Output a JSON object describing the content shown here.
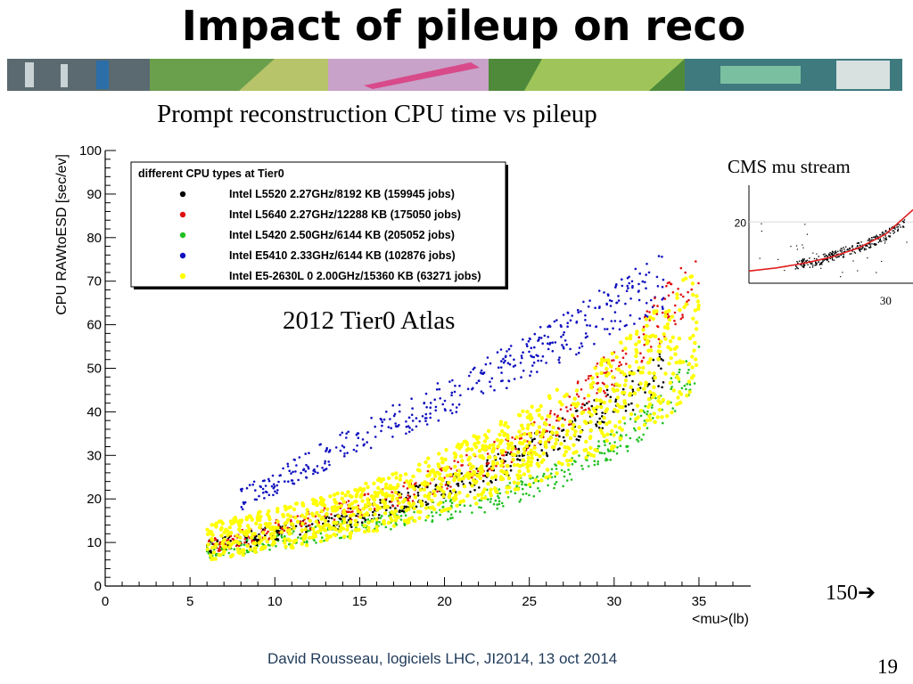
{
  "slide": {
    "title": "Impact of pileup on reco",
    "subtitle": "Prompt reconstruction CPU time vs pileup",
    "annotation": "2012 Tier0 Atlas",
    "note": "150",
    "footer": "David Rousseau, logiciels LHC, JI2014, 13 oct 2014",
    "page_number": "19"
  },
  "chart_data": [
    {
      "type": "scatter",
      "title": "",
      "xlabel": "<mu>(lb)",
      "ylabel": "CPU RAWtoESD [sec/ev]",
      "xlim": [
        0,
        37
      ],
      "ylim": [
        0,
        100
      ],
      "xticks": [
        0,
        5,
        10,
        15,
        20,
        25,
        30,
        35
      ],
      "yticks": [
        0,
        10,
        20,
        30,
        40,
        50,
        60,
        70,
        80,
        90,
        100
      ],
      "grid": false,
      "legend_title": "different CPU types at Tier0",
      "legend_position": "top-left",
      "series": [
        {
          "name": "Intel L5520 2.27GHz/8192 KB (159945 jobs)",
          "color": "#000000",
          "x": [
            6,
            10,
            14,
            18,
            22,
            26,
            30,
            33
          ],
          "y": [
            9,
            12,
            15,
            20,
            25,
            33,
            42,
            50
          ]
        },
        {
          "name": "Intel L5640 2.27GHz/12288 KB (175050 jobs)",
          "color": "#e01010",
          "x": [
            6,
            10,
            14,
            18,
            22,
            26,
            30,
            33,
            35
          ],
          "y": [
            9,
            13,
            17,
            22,
            28,
            36,
            50,
            63,
            72
          ]
        },
        {
          "name": "Intel L5420 2.50GHz/6144 KB (205052 jobs)",
          "color": "#20c020",
          "x": [
            6,
            10,
            14,
            18,
            22,
            26,
            30,
            33,
            35
          ],
          "y": [
            8,
            10,
            13,
            16,
            19,
            24,
            32,
            42,
            50
          ]
        },
        {
          "name": "Intel E5410 2.33GHz/6144 KB (102876 jobs)",
          "color": "#1010c0",
          "x": [
            8,
            12,
            16,
            20,
            24,
            27,
            30,
            33
          ],
          "y": [
            20,
            28,
            36,
            43,
            51,
            57,
            64,
            70
          ]
        },
        {
          "name": "Intel E5-2630L 0 2.00GHz/15360 KB (63271 jobs)",
          "color": "#ffff00",
          "x": [
            6,
            10,
            14,
            18,
            22,
            26,
            30,
            33,
            35
          ],
          "y": [
            10,
            13,
            16,
            21,
            27,
            34,
            43,
            52,
            60
          ]
        }
      ]
    },
    {
      "type": "scatter",
      "title": "CMS mu stream",
      "xlabel": "",
      "ylabel": "",
      "xlim": [
        0,
        36
      ],
      "ylim": [
        0,
        32
      ],
      "xticks": [
        30
      ],
      "yticks": [
        20
      ],
      "grid": true,
      "series": [
        {
          "name": "",
          "color": "#000000",
          "x": [
            10,
            14,
            18,
            22,
            26,
            30,
            34
          ],
          "y": [
            6,
            7,
            9,
            11,
            13,
            16,
            20
          ]
        },
        {
          "name": "",
          "color": "#e02020",
          "fit": true,
          "x": [
            0,
            6,
            12,
            18,
            24,
            30,
            36
          ],
          "y": [
            4,
            5,
            6.5,
            8.5,
            11.5,
            16,
            24
          ]
        }
      ]
    }
  ]
}
